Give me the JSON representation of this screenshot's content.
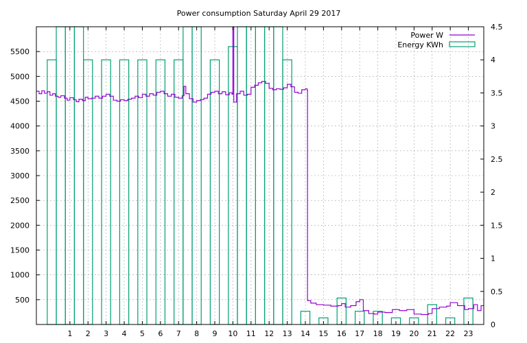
{
  "chart_data": {
    "type": "bar+line",
    "title": "Power consumption Saturday April 29 2017",
    "xlabel": "",
    "ylabel": "",
    "y2label": "",
    "grid": true,
    "legend_position": "top-right",
    "xlim": [
      -0.85,
      23.85
    ],
    "ylim": [
      0,
      6000
    ],
    "y2lim": [
      0,
      4.5
    ],
    "x_ticks": [
      1,
      2,
      3,
      4,
      5,
      6,
      7,
      8,
      9,
      10,
      11,
      12,
      13,
      14,
      15,
      16,
      17,
      18,
      19,
      20,
      21,
      22,
      23
    ],
    "y_ticks": [
      500,
      1000,
      1500,
      2000,
      2500,
      3000,
      3500,
      4000,
      4500,
      5000,
      5500
    ],
    "y2_ticks": [
      0,
      0.5,
      1,
      1.5,
      2,
      2.5,
      3,
      3.5,
      4,
      4.5
    ],
    "colors": {
      "power": "#9400d3",
      "energy": "#009e73"
    },
    "series": [
      {
        "name": "Power W",
        "kind": "line",
        "axis": "y",
        "color": "#9400d3",
        "points": [
          [
            -0.85,
            4700
          ],
          [
            -0.7,
            4650
          ],
          [
            -0.55,
            4710
          ],
          [
            -0.4,
            4660
          ],
          [
            -0.25,
            4690
          ],
          [
            -0.1,
            4620
          ],
          [
            0.05,
            4650
          ],
          [
            0.2,
            4600
          ],
          [
            0.35,
            4580
          ],
          [
            0.5,
            4610
          ],
          [
            0.7,
            4560
          ],
          [
            0.85,
            4520
          ],
          [
            1.0,
            4570
          ],
          [
            1.2,
            4530
          ],
          [
            1.35,
            4490
          ],
          [
            1.5,
            4540
          ],
          [
            1.7,
            4510
          ],
          [
            1.85,
            4580
          ],
          [
            2.0,
            4550
          ],
          [
            2.2,
            4560
          ],
          [
            2.4,
            4600
          ],
          [
            2.6,
            4560
          ],
          [
            2.8,
            4600
          ],
          [
            3.0,
            4640
          ],
          [
            3.2,
            4600
          ],
          [
            3.4,
            4520
          ],
          [
            3.6,
            4500
          ],
          [
            3.8,
            4530
          ],
          [
            4.0,
            4510
          ],
          [
            4.2,
            4540
          ],
          [
            4.4,
            4560
          ],
          [
            4.6,
            4600
          ],
          [
            4.8,
            4570
          ],
          [
            5.0,
            4640
          ],
          [
            5.2,
            4600
          ],
          [
            5.4,
            4650
          ],
          [
            5.6,
            4620
          ],
          [
            5.8,
            4680
          ],
          [
            6.0,
            4700
          ],
          [
            6.2,
            4650
          ],
          [
            6.4,
            4600
          ],
          [
            6.6,
            4640
          ],
          [
            6.8,
            4580
          ],
          [
            7.0,
            4560
          ],
          [
            7.2,
            4610
          ],
          [
            7.3,
            4800
          ],
          [
            7.4,
            4650
          ],
          [
            7.6,
            4550
          ],
          [
            7.8,
            4480
          ],
          [
            8.0,
            4510
          ],
          [
            8.2,
            4530
          ],
          [
            8.4,
            4560
          ],
          [
            8.6,
            4640
          ],
          [
            8.8,
            4680
          ],
          [
            9.0,
            4700
          ],
          [
            9.2,
            4650
          ],
          [
            9.4,
            4690
          ],
          [
            9.6,
            4630
          ],
          [
            9.8,
            4670
          ],
          [
            9.95,
            4640
          ],
          [
            10.0,
            6000
          ],
          [
            10.05,
            4480
          ],
          [
            10.2,
            4650
          ],
          [
            10.4,
            4700
          ],
          [
            10.6,
            4620
          ],
          [
            10.8,
            4640
          ],
          [
            11.0,
            4780
          ],
          [
            11.2,
            4820
          ],
          [
            11.4,
            4870
          ],
          [
            11.6,
            4900
          ],
          [
            11.8,
            4860
          ],
          [
            12.0,
            4760
          ],
          [
            12.2,
            4730
          ],
          [
            12.4,
            4750
          ],
          [
            12.6,
            4740
          ],
          [
            12.8,
            4770
          ],
          [
            13.0,
            4840
          ],
          [
            13.2,
            4790
          ],
          [
            13.4,
            4680
          ],
          [
            13.6,
            4660
          ],
          [
            13.8,
            4730
          ],
          [
            14.0,
            4750
          ],
          [
            14.1,
            4720
          ],
          [
            14.12,
            480
          ],
          [
            14.3,
            430
          ],
          [
            14.6,
            400
          ],
          [
            15.0,
            390
          ],
          [
            15.4,
            370
          ],
          [
            15.8,
            380
          ],
          [
            16.0,
            420
          ],
          [
            16.2,
            350
          ],
          [
            16.5,
            380
          ],
          [
            16.8,
            460
          ],
          [
            17.0,
            500
          ],
          [
            17.2,
            280
          ],
          [
            17.5,
            220
          ],
          [
            17.8,
            210
          ],
          [
            18.0,
            250
          ],
          [
            18.4,
            240
          ],
          [
            18.8,
            300
          ],
          [
            19.2,
            280
          ],
          [
            19.6,
            300
          ],
          [
            20.0,
            210
          ],
          [
            20.4,
            200
          ],
          [
            20.8,
            220
          ],
          [
            21.0,
            320
          ],
          [
            21.4,
            350
          ],
          [
            21.8,
            370
          ],
          [
            22.0,
            440
          ],
          [
            22.4,
            380
          ],
          [
            22.8,
            300
          ],
          [
            23.0,
            320
          ],
          [
            23.3,
            400
          ],
          [
            23.5,
            280
          ],
          [
            23.7,
            380
          ],
          [
            23.85,
            380
          ]
        ]
      },
      {
        "name": "Energy KWh",
        "kind": "bar",
        "axis": "y2",
        "color": "#009e73",
        "bar_width": 0.5,
        "bars": [
          [
            0,
            4.0
          ],
          [
            1,
            4.5
          ],
          [
            2,
            4.0
          ],
          [
            3,
            4.0
          ],
          [
            4,
            4.0
          ],
          [
            5,
            4.0
          ],
          [
            6,
            4.0
          ],
          [
            7,
            4.0
          ],
          [
            8,
            4.5
          ],
          [
            9,
            4.0
          ],
          [
            10,
            4.2
          ],
          [
            11,
            4.5
          ],
          [
            12,
            4.5
          ],
          [
            13,
            4.0
          ],
          [
            14,
            0.2
          ],
          [
            15,
            0.1
          ],
          [
            16,
            0.4
          ],
          [
            17,
            0.2
          ],
          [
            18,
            0.2
          ],
          [
            19,
            0.1
          ],
          [
            20,
            0.1
          ],
          [
            21,
            0.3
          ],
          [
            22,
            0.1
          ],
          [
            23,
            0.4
          ]
        ]
      },
      {
        "name": "",
        "kind": "bar",
        "axis": "y2",
        "color": "#009e73",
        "bar_width": 0.5,
        "bars": [
          [
            0.5,
            4.5
          ],
          [
            1.5,
            4.5
          ],
          [
            7.5,
            4.5
          ],
          [
            10.5,
            4.5
          ],
          [
            11.5,
            4.5
          ],
          [
            12.5,
            4.5
          ]
        ]
      }
    ]
  }
}
